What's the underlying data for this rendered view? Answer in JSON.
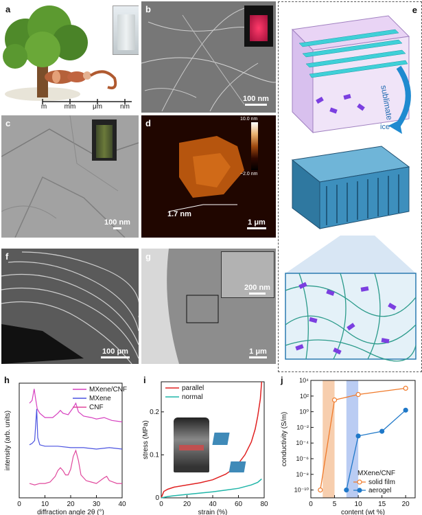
{
  "panels": {
    "a": {
      "label": "a",
      "scale_labels": [
        "m",
        "mm",
        "μm",
        "nm"
      ]
    },
    "b": {
      "label": "b",
      "scalebar": "100 nm"
    },
    "c": {
      "label": "c",
      "scalebar": "100 nm"
    },
    "d": {
      "label": "d",
      "scalebar": "1 μm",
      "height_label": "1.7 nm",
      "colorbar_top": "10.0 nm",
      "colorbar_bottom": "−2.0 nm"
    },
    "e": {
      "label": "e",
      "arrow_text": "sublimate",
      "ice_text": "ice"
    },
    "f": {
      "label": "f",
      "scalebar": "100 μm"
    },
    "g": {
      "label": "g",
      "scalebar": "1 μm",
      "inset_scalebar": "200 nm"
    },
    "h": {
      "label": "h"
    },
    "i": {
      "label": "i"
    },
    "j": {
      "label": "j"
    }
  },
  "colors": {
    "mxene_cnf": "#d63fbf",
    "mxene": "#4a52e0",
    "cnf": "#e0479c",
    "parallel": "#e02020",
    "normal": "#1fb5a8",
    "solid_film": "#f07a2a",
    "aerogel": "#1f78c8",
    "solid_band": "#f5c29a",
    "aerogel_band": "#a9bff0",
    "cyan_lamella": "#3fd0d8",
    "mxene_flake": "#7b3fe0"
  },
  "chart_data": [
    {
      "id": "h",
      "type": "line",
      "xlabel": "diffraction angle 2θ (°)",
      "ylabel": "intensity (arb. units)",
      "xlim": [
        0,
        40
      ],
      "xticks": [
        0,
        10,
        20,
        30,
        40
      ],
      "legend": "top-right",
      "series": [
        {
          "name": "MXene/CNF",
          "x": [
            4,
            5,
            5.8,
            6.3,
            7,
            8,
            10,
            13,
            15,
            16,
            17,
            19,
            21,
            22,
            23,
            25,
            28,
            30,
            33,
            36,
            40
          ],
          "y": [
            6.6,
            6.8,
            7.6,
            7.0,
            6.2,
            5.9,
            5.6,
            5.6,
            5.9,
            6.1,
            5.9,
            5.8,
            6.3,
            6.6,
            6.0,
            5.7,
            5.6,
            5.5,
            5.6,
            5.4,
            5.3
          ]
        },
        {
          "name": "MXene",
          "x": [
            4,
            5,
            6,
            6.8,
            7.2,
            8,
            10,
            15,
            20,
            25,
            30,
            35,
            40
          ],
          "y": [
            3.7,
            3.8,
            4.0,
            6.2,
            4.2,
            3.7,
            3.6,
            3.6,
            3.5,
            3.5,
            3.4,
            3.5,
            3.4
          ]
        },
        {
          "name": "CNF",
          "x": [
            4,
            6,
            8,
            10,
            12,
            14,
            15,
            16,
            17,
            18,
            19,
            20,
            21,
            22,
            23,
            24,
            26,
            28,
            30,
            33,
            34,
            35,
            38,
            40
          ],
          "y": [
            1.0,
            0.9,
            1.0,
            1.0,
            1.1,
            1.5,
            1.9,
            2.1,
            1.9,
            1.6,
            1.6,
            2.0,
            2.9,
            3.3,
            2.6,
            1.6,
            1.2,
            1.1,
            1.0,
            1.4,
            1.5,
            1.2,
            1.0,
            1.0
          ]
        }
      ]
    },
    {
      "id": "i",
      "type": "line",
      "xlabel": "strain (%)",
      "ylabel": "stress (MPa)",
      "xlim": [
        0,
        80
      ],
      "ylim": [
        0,
        0.27
      ],
      "xticks": [
        0,
        20,
        40,
        60,
        80
      ],
      "yticks": [
        0,
        0.1,
        0.2
      ],
      "legend": "top-left",
      "series": [
        {
          "name": "parallel",
          "x": [
            0,
            2,
            5,
            10,
            20,
            30,
            40,
            50,
            55,
            60,
            65,
            70,
            73,
            75,
            77,
            78
          ],
          "y": [
            0,
            0.015,
            0.02,
            0.025,
            0.03,
            0.035,
            0.042,
            0.055,
            0.065,
            0.08,
            0.1,
            0.13,
            0.16,
            0.19,
            0.23,
            0.27
          ]
        },
        {
          "name": "normal",
          "x": [
            0,
            5,
            10,
            20,
            30,
            40,
            50,
            60,
            65,
            70,
            75,
            78
          ],
          "y": [
            0,
            0.003,
            0.005,
            0.008,
            0.011,
            0.014,
            0.018,
            0.022,
            0.026,
            0.03,
            0.036,
            0.044
          ]
        }
      ]
    },
    {
      "id": "j",
      "type": "line",
      "xlabel": "content (wt %)",
      "ylabel": "conductivity (S/m)",
      "xlim": [
        0,
        22
      ],
      "yscale": "log",
      "ylim_exp": [
        -11,
        4
      ],
      "xticks": [
        0,
        5,
        10,
        15,
        20
      ],
      "ytick_labels": [
        "10⁻¹⁰",
        "10⁻⁸",
        "10⁻⁶",
        "10⁻⁴",
        "10⁻²",
        "10⁰",
        "10²",
        "10⁴"
      ],
      "ytick_exps": [
        -10,
        -8,
        -6,
        -4,
        -2,
        0,
        2,
        4
      ],
      "legend_title": "MXene/CNF",
      "legend": "bottom-right",
      "bands": [
        {
          "series": "solid film",
          "x": [
            2.5,
            5
          ]
        },
        {
          "series": "aerogel",
          "x": [
            7.5,
            10
          ]
        }
      ],
      "series": [
        {
          "name": "solid film",
          "marker": "open-circle",
          "x": [
            2,
            5,
            10,
            20
          ],
          "y_exp": [
            -10,
            1.5,
            2.2,
            3
          ]
        },
        {
          "name": "aerogel",
          "marker": "filled-circle",
          "x": [
            7.5,
            10,
            15,
            20
          ],
          "y_exp": [
            -10,
            -3.1,
            -2.5,
            0.2
          ]
        }
      ]
    }
  ]
}
